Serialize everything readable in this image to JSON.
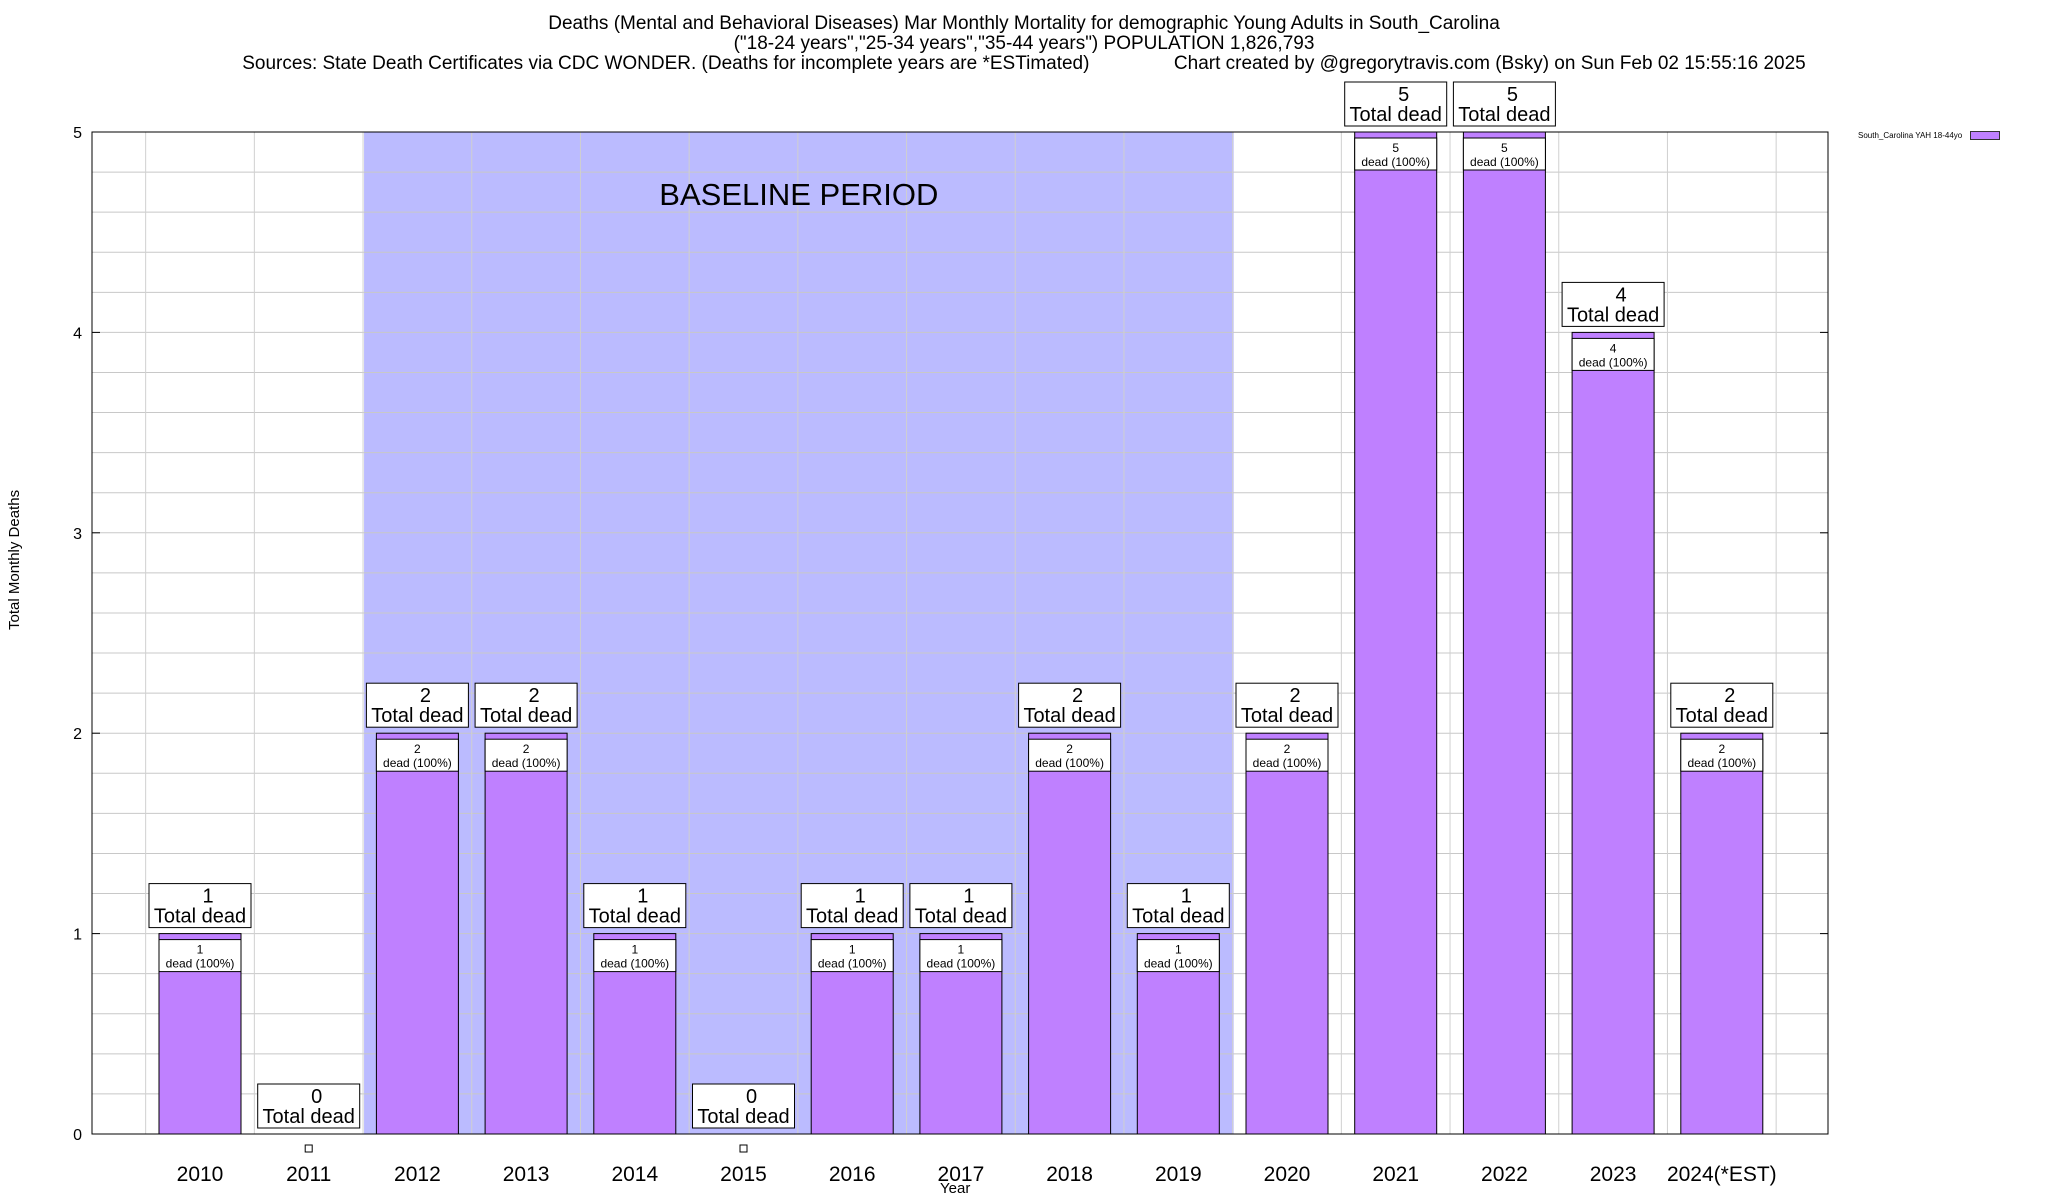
{
  "title": {
    "line1": "Deaths (Mental and Behavioral Diseases) Mar Monthly Mortality for demographic Young Adults in South_Carolina",
    "line2": "(\"18-24 years\",\"25-34 years\",\"35-44 years\") POPULATION 1,826,793",
    "line3": "Sources: State Death Certificates via CDC WONDER. (Deaths for incomplete years are *ESTimated)                Chart created by @gregorytravis.com (Bsky) on Sun Feb 02 15:55:16 2025"
  },
  "axes": {
    "ylabel": "Total Monthly Deaths",
    "xlabel": "Year"
  },
  "legend": {
    "label": "South_Carolina YAH 18-44yo"
  },
  "colors": {
    "bar": "#bf80ff",
    "baseline": "#bbbbff"
  },
  "chart_data": {
    "type": "bar",
    "categories": [
      "2010",
      "2011",
      "2012",
      "2013",
      "2014",
      "2015",
      "2016",
      "2017",
      "2018",
      "2019",
      "2020",
      "2021",
      "2022",
      "2023",
      "2024(*EST)"
    ],
    "series": [
      {
        "name": "South_Carolina YAH 18-44yo",
        "values": [
          1,
          0,
          2,
          2,
          1,
          0,
          1,
          1,
          2,
          1,
          2,
          5,
          5,
          4,
          2
        ]
      }
    ],
    "ylim": [
      0,
      5
    ],
    "yticks": [
      0,
      1,
      2,
      3,
      4,
      5
    ],
    "grid": true,
    "legend_position": "top-right",
    "total_label": "Total dead",
    "inner_label_suffix": "dead (100%)",
    "annotations": [
      {
        "text": "BASELINE PERIOD",
        "x_start": "2012",
        "x_end": "2019"
      }
    ]
  }
}
